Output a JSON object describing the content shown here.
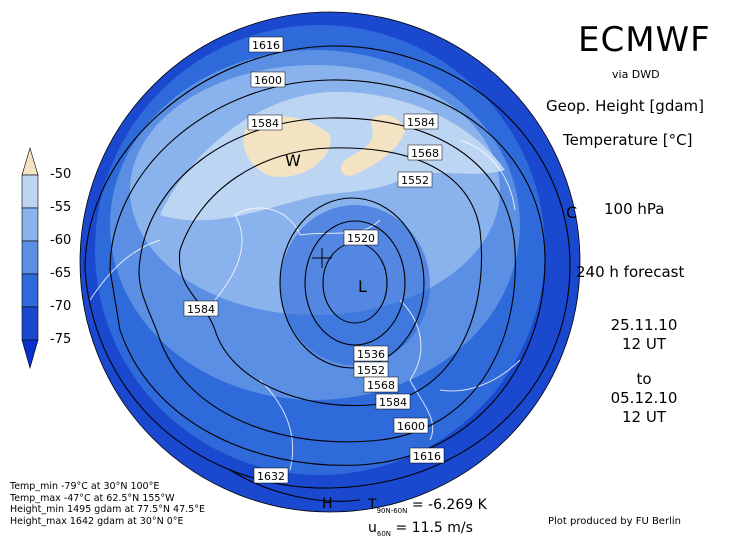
{
  "header": {
    "title": "ECMWF",
    "via": "via DWD",
    "geop_label": "Geop. Height [gdam]",
    "temp_label": "Temperature [°C]",
    "level": "100 hPa",
    "forecast": "240 h forecast",
    "init_date": "25.11.10",
    "init_time": "12 UT",
    "to": "to",
    "valid_date": "05.12.10",
    "valid_time": "12 UT"
  },
  "stats": {
    "temp_min": "Temp_min -79°C at 30°N 100°E",
    "temp_max": "Temp_max -47°C at 62.5°N 155°W",
    "height_min": "Height_min 1495 gdam at 77.5°N 47.5°E",
    "height_max": "Height_max 1642 gdam at 30°N 0°E"
  },
  "diagnostics": {
    "t_label": "T",
    "t_sub": "90N-60N",
    "t_value": "= -6.269 K",
    "u_label": "u",
    "u_sub": "60N",
    "u_value": "= 11.5 m/s"
  },
  "credit": "Plot produced by FU Berlin",
  "legend": {
    "ticks": [
      "-50",
      "-55",
      "-60",
      "-65",
      "-70",
      "-75"
    ],
    "colors": [
      "#f3e3c3",
      "#bcd5f3",
      "#8ab2ec",
      "#5a8fe3",
      "#2f6adb",
      "#1a48cf",
      "#0a2fd0"
    ]
  },
  "map": {
    "high_marker": "W",
    "low_marker": "L",
    "pole_marker": "C",
    "h_marker": "H",
    "contour_labels": [
      "1616",
      "1600",
      "1584",
      "1584",
      "1568",
      "1552",
      "1520",
      "1584",
      "1536",
      "1552",
      "1568",
      "1584",
      "1600",
      "1616",
      "1632"
    ]
  }
}
